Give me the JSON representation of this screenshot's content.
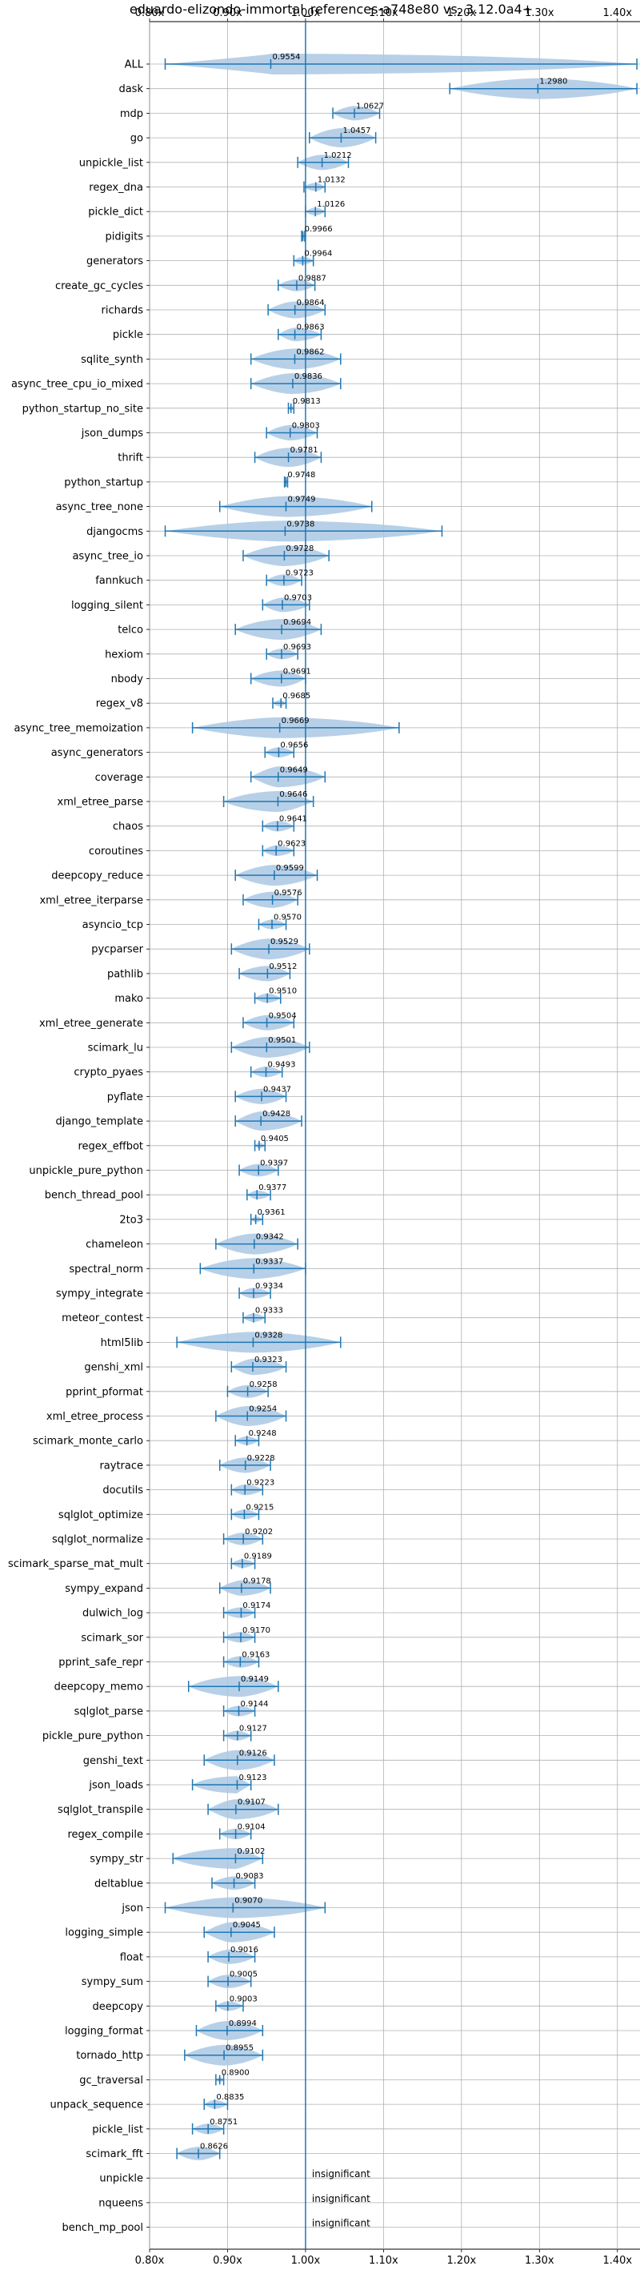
{
  "chart_data": {
    "type": "violin",
    "title": "eduardo-elizondo-immortal_references-a748e80 vs. 3.12.0a4+",
    "xlabel": "",
    "ylabel": "",
    "xlim": [
      0.8,
      1.43
    ],
    "xticks": [
      0.8,
      0.9,
      1.0,
      1.1,
      1.2,
      1.3,
      1.4
    ],
    "xtick_labels": [
      "0.80x",
      "0.90x",
      "1.00x",
      "1.10x",
      "1.20x",
      "1.30x",
      "1.40x"
    ],
    "reference_line": 1.0,
    "grid": true,
    "colors": {
      "violin": "#aac8e4",
      "line": "#1f77b4"
    },
    "benchmarks": [
      {
        "name": "ALL",
        "label": "0.9554",
        "value": 0.9554,
        "min": 0.82,
        "max": 1.425
      },
      {
        "name": "dask",
        "label": "1.2980",
        "value": 1.298,
        "min": 1.185,
        "max": 1.425
      },
      {
        "name": "mdp",
        "label": "1.0627",
        "value": 1.0627,
        "min": 1.035,
        "max": 1.095
      },
      {
        "name": "go",
        "label": "1.0457",
        "value": 1.0457,
        "min": 1.005,
        "max": 1.09
      },
      {
        "name": "unpickle_list",
        "label": "1.0212",
        "value": 1.0212,
        "min": 0.99,
        "max": 1.055
      },
      {
        "name": "regex_dna",
        "label": "1.0132",
        "value": 1.0132,
        "min": 0.998,
        "max": 1.025
      },
      {
        "name": "pickle_dict",
        "label": "1.0126",
        "value": 1.0126,
        "min": 1.0,
        "max": 1.025
      },
      {
        "name": "pidigits",
        "label": "0.9966",
        "value": 0.9966,
        "min": 0.995,
        "max": 0.999
      },
      {
        "name": "generators",
        "label": "0.9964",
        "value": 0.9964,
        "min": 0.985,
        "max": 1.01
      },
      {
        "name": "create_gc_cycles",
        "label": "0.9887",
        "value": 0.9887,
        "min": 0.965,
        "max": 1.012
      },
      {
        "name": "richards",
        "label": "0.9864",
        "value": 0.9864,
        "min": 0.952,
        "max": 1.025
      },
      {
        "name": "pickle",
        "label": "0.9863",
        "value": 0.9863,
        "min": 0.965,
        "max": 1.02
      },
      {
        "name": "sqlite_synth",
        "label": "0.9862",
        "value": 0.9862,
        "min": 0.93,
        "max": 1.045
      },
      {
        "name": "async_tree_cpu_io_mixed",
        "label": "0.9836",
        "value": 0.9836,
        "min": 0.93,
        "max": 1.045
      },
      {
        "name": "python_startup_no_site",
        "label": "0.9813",
        "value": 0.9813,
        "min": 0.978,
        "max": 0.985
      },
      {
        "name": "json_dumps",
        "label": "0.9803",
        "value": 0.9803,
        "min": 0.95,
        "max": 1.015
      },
      {
        "name": "thrift",
        "label": "0.9781",
        "value": 0.9781,
        "min": 0.935,
        "max": 1.02
      },
      {
        "name": "python_startup",
        "label": "0.9748",
        "value": 0.9748,
        "min": 0.973,
        "max": 0.977
      },
      {
        "name": "async_tree_none",
        "label": "0.9749",
        "value": 0.9749,
        "min": 0.89,
        "max": 1.085
      },
      {
        "name": "djangocms",
        "label": "0.9738",
        "value": 0.9738,
        "min": 0.82,
        "max": 1.175
      },
      {
        "name": "async_tree_io",
        "label": "0.9728",
        "value": 0.9728,
        "min": 0.92,
        "max": 1.03
      },
      {
        "name": "fannkuch",
        "label": "0.9723",
        "value": 0.9723,
        "min": 0.95,
        "max": 0.995
      },
      {
        "name": "logging_silent",
        "label": "0.9703",
        "value": 0.9703,
        "min": 0.945,
        "max": 1.005
      },
      {
        "name": "telco",
        "label": "0.9694",
        "value": 0.9694,
        "min": 0.91,
        "max": 1.02
      },
      {
        "name": "hexiom",
        "label": "0.9693",
        "value": 0.9693,
        "min": 0.95,
        "max": 0.99
      },
      {
        "name": "nbody",
        "label": "0.9691",
        "value": 0.9691,
        "min": 0.93,
        "max": 1.0
      },
      {
        "name": "regex_v8",
        "label": "0.9685",
        "value": 0.9685,
        "min": 0.958,
        "max": 0.975
      },
      {
        "name": "async_tree_memoization",
        "label": "0.9669",
        "value": 0.9669,
        "min": 0.855,
        "max": 1.12
      },
      {
        "name": "async_generators",
        "label": "0.9656",
        "value": 0.9656,
        "min": 0.948,
        "max": 0.985
      },
      {
        "name": "coverage",
        "label": "0.9649",
        "value": 0.9649,
        "min": 0.93,
        "max": 1.025
      },
      {
        "name": "xml_etree_parse",
        "label": "0.9646",
        "value": 0.9646,
        "min": 0.895,
        "max": 1.01
      },
      {
        "name": "chaos",
        "label": "0.9641",
        "value": 0.9641,
        "min": 0.945,
        "max": 0.985
      },
      {
        "name": "coroutines",
        "label": "0.9623",
        "value": 0.9623,
        "min": 0.945,
        "max": 0.985
      },
      {
        "name": "deepcopy_reduce",
        "label": "0.9599",
        "value": 0.9599,
        "min": 0.91,
        "max": 1.015
      },
      {
        "name": "xml_etree_iterparse",
        "label": "0.9576",
        "value": 0.9576,
        "min": 0.92,
        "max": 0.99
      },
      {
        "name": "asyncio_tcp",
        "label": "0.9570",
        "value": 0.957,
        "min": 0.94,
        "max": 0.975
      },
      {
        "name": "pycparser",
        "label": "0.9529",
        "value": 0.9529,
        "min": 0.905,
        "max": 1.005
      },
      {
        "name": "pathlib",
        "label": "0.9512",
        "value": 0.9512,
        "min": 0.915,
        "max": 0.98
      },
      {
        "name": "mako",
        "label": "0.9510",
        "value": 0.951,
        "min": 0.935,
        "max": 0.968
      },
      {
        "name": "xml_etree_generate",
        "label": "0.9504",
        "value": 0.9504,
        "min": 0.92,
        "max": 0.985
      },
      {
        "name": "scimark_lu",
        "label": "0.9501",
        "value": 0.9501,
        "min": 0.905,
        "max": 1.005
      },
      {
        "name": "crypto_pyaes",
        "label": "0.9493",
        "value": 0.9493,
        "min": 0.93,
        "max": 0.97
      },
      {
        "name": "pyflate",
        "label": "0.9437",
        "value": 0.9437,
        "min": 0.91,
        "max": 0.975
      },
      {
        "name": "django_template",
        "label": "0.9428",
        "value": 0.9428,
        "min": 0.91,
        "max": 0.995
      },
      {
        "name": "regex_effbot",
        "label": "0.9405",
        "value": 0.9405,
        "min": 0.935,
        "max": 0.948
      },
      {
        "name": "unpickle_pure_python",
        "label": "0.9397",
        "value": 0.9397,
        "min": 0.915,
        "max": 0.965
      },
      {
        "name": "bench_thread_pool",
        "label": "0.9377",
        "value": 0.9377,
        "min": 0.925,
        "max": 0.955
      },
      {
        "name": "2to3",
        "label": "0.9361",
        "value": 0.9361,
        "min": 0.93,
        "max": 0.945
      },
      {
        "name": "chameleon",
        "label": "0.9342",
        "value": 0.9342,
        "min": 0.885,
        "max": 0.99
      },
      {
        "name": "spectral_norm",
        "label": "0.9337",
        "value": 0.9337,
        "min": 0.865,
        "max": 1.0
      },
      {
        "name": "sympy_integrate",
        "label": "0.9334",
        "value": 0.9334,
        "min": 0.915,
        "max": 0.955
      },
      {
        "name": "meteor_contest",
        "label": "0.9333",
        "value": 0.9333,
        "min": 0.92,
        "max": 0.948
      },
      {
        "name": "html5lib",
        "label": "0.9328",
        "value": 0.9328,
        "min": 0.835,
        "max": 1.045
      },
      {
        "name": "genshi_xml",
        "label": "0.9323",
        "value": 0.9323,
        "min": 0.905,
        "max": 0.975
      },
      {
        "name": "pprint_pformat",
        "label": "0.9258",
        "value": 0.9258,
        "min": 0.9,
        "max": 0.952
      },
      {
        "name": "xml_etree_process",
        "label": "0.9254",
        "value": 0.9254,
        "min": 0.885,
        "max": 0.975
      },
      {
        "name": "scimark_monte_carlo",
        "label": "0.9248",
        "value": 0.9248,
        "min": 0.91,
        "max": 0.94
      },
      {
        "name": "raytrace",
        "label": "0.9228",
        "value": 0.9228,
        "min": 0.89,
        "max": 0.955
      },
      {
        "name": "docutils",
        "label": "0.9223",
        "value": 0.9223,
        "min": 0.905,
        "max": 0.945
      },
      {
        "name": "sqlglot_optimize",
        "label": "0.9215",
        "value": 0.9215,
        "min": 0.905,
        "max": 0.94
      },
      {
        "name": "sqlglot_normalize",
        "label": "0.9202",
        "value": 0.9202,
        "min": 0.895,
        "max": 0.945
      },
      {
        "name": "scimark_sparse_mat_mult",
        "label": "0.9189",
        "value": 0.9189,
        "min": 0.905,
        "max": 0.935
      },
      {
        "name": "sympy_expand",
        "label": "0.9178",
        "value": 0.9178,
        "min": 0.89,
        "max": 0.955
      },
      {
        "name": "dulwich_log",
        "label": "0.9174",
        "value": 0.9174,
        "min": 0.895,
        "max": 0.935
      },
      {
        "name": "scimark_sor",
        "label": "0.9170",
        "value": 0.917,
        "min": 0.895,
        "max": 0.935
      },
      {
        "name": "pprint_safe_repr",
        "label": "0.9163",
        "value": 0.9163,
        "min": 0.895,
        "max": 0.94
      },
      {
        "name": "deepcopy_memo",
        "label": "0.9149",
        "value": 0.9149,
        "min": 0.85,
        "max": 0.965
      },
      {
        "name": "sqlglot_parse",
        "label": "0.9144",
        "value": 0.9144,
        "min": 0.895,
        "max": 0.935
      },
      {
        "name": "pickle_pure_python",
        "label": "0.9127",
        "value": 0.9127,
        "min": 0.895,
        "max": 0.93
      },
      {
        "name": "genshi_text",
        "label": "0.9126",
        "value": 0.9126,
        "min": 0.87,
        "max": 0.96
      },
      {
        "name": "json_loads",
        "label": "0.9123",
        "value": 0.9123,
        "min": 0.855,
        "max": 0.93
      },
      {
        "name": "sqlglot_transpile",
        "label": "0.9107",
        "value": 0.9107,
        "min": 0.875,
        "max": 0.965
      },
      {
        "name": "regex_compile",
        "label": "0.9104",
        "value": 0.9104,
        "min": 0.89,
        "max": 0.93
      },
      {
        "name": "sympy_str",
        "label": "0.9102",
        "value": 0.9102,
        "min": 0.83,
        "max": 0.945
      },
      {
        "name": "deltablue",
        "label": "0.9083",
        "value": 0.9083,
        "min": 0.88,
        "max": 0.935
      },
      {
        "name": "json",
        "label": "0.9070",
        "value": 0.907,
        "min": 0.82,
        "max": 1.025
      },
      {
        "name": "logging_simple",
        "label": "0.9045",
        "value": 0.9045,
        "min": 0.87,
        "max": 0.96
      },
      {
        "name": "float",
        "label": "0.9016",
        "value": 0.9016,
        "min": 0.875,
        "max": 0.935
      },
      {
        "name": "sympy_sum",
        "label": "0.9005",
        "value": 0.9005,
        "min": 0.875,
        "max": 0.93
      },
      {
        "name": "deepcopy",
        "label": "0.9003",
        "value": 0.9003,
        "min": 0.885,
        "max": 0.92
      },
      {
        "name": "logging_format",
        "label": "0.8994",
        "value": 0.8994,
        "min": 0.86,
        "max": 0.945
      },
      {
        "name": "tornado_http",
        "label": "0.8955",
        "value": 0.8955,
        "min": 0.845,
        "max": 0.945
      },
      {
        "name": "gc_traversal",
        "label": "0.8900",
        "value": 0.89,
        "min": 0.885,
        "max": 0.895
      },
      {
        "name": "unpack_sequence",
        "label": "0.8835",
        "value": 0.8835,
        "min": 0.87,
        "max": 0.9
      },
      {
        "name": "pickle_list",
        "label": "0.8751",
        "value": 0.8751,
        "min": 0.855,
        "max": 0.895
      },
      {
        "name": "scimark_fft",
        "label": "0.8626",
        "value": 0.8626,
        "min": 0.835,
        "max": 0.89
      },
      {
        "name": "unpickle",
        "label": "insignificant",
        "value": null
      },
      {
        "name": "nqueens",
        "label": "insignificant",
        "value": null
      },
      {
        "name": "bench_mp_pool",
        "label": "insignificant",
        "value": null
      }
    ]
  }
}
